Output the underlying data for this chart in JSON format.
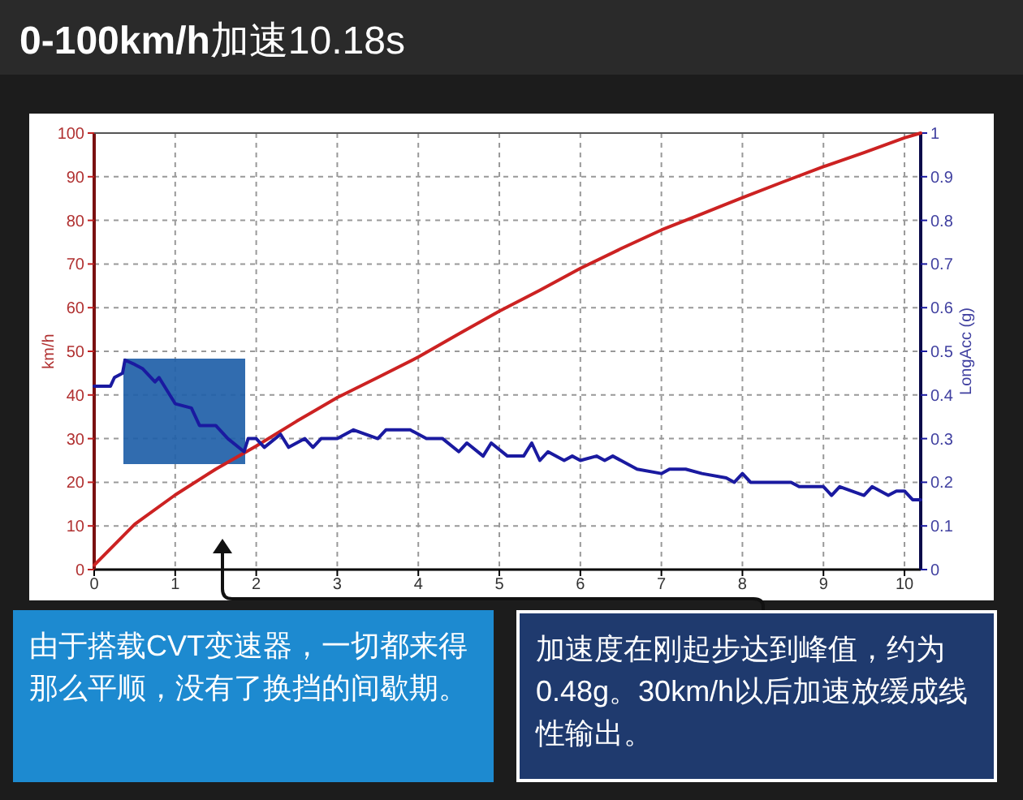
{
  "chart_data": {
    "type": "line",
    "title": "0-100km/h加速10.18s",
    "ylabel": "km/h",
    "y2label": "LongAcc (g)",
    "annotations": [
      "由于搭载CVT变速器，一切都来得那么平顺，没有了换挡的间歇期。",
      "加速度在刚起步达到峰值，约为0.48g。30km/h以后加速放缓成线性输出。"
    ],
    "xlim": [
      0,
      10.2
    ],
    "xticks": [
      0,
      1,
      2,
      3,
      4,
      5,
      6,
      7,
      8,
      9,
      10
    ],
    "ylim": [
      0,
      100
    ],
    "yticks": [
      0,
      10,
      20,
      30,
      40,
      50,
      60,
      70,
      80,
      90,
      100
    ],
    "y2lim": [
      0,
      1
    ],
    "y2ticks": [
      0,
      0.1,
      0.2,
      0.3,
      0.4,
      0.5,
      0.6,
      0.7,
      0.8,
      0.9,
      1
    ],
    "grid": true,
    "line_style": "solid",
    "marker": "none",
    "series": [
      {
        "color": "#cc2222",
        "x": [
          0,
          0.5,
          1,
          1.5,
          2,
          2.5,
          3,
          3.5,
          4,
          4.5,
          5,
          5.5,
          6,
          6.5,
          7,
          7.5,
          8,
          8.5,
          9,
          9.5,
          10,
          10.2
        ],
        "values": [
          1,
          10.4,
          17.1,
          23,
          28.3,
          34,
          39.4,
          44,
          48.7,
          54,
          59.2,
          64,
          69,
          73.5,
          77.8,
          81.5,
          85.2,
          88.8,
          92.3,
          95.5,
          98.9,
          100
        ]
      },
      {
        "color": "#1a1aa0",
        "axis": "y2",
        "x": [
          0,
          0.2,
          0.25,
          0.35,
          0.38,
          0.5,
          0.6,
          0.75,
          0.8,
          1,
          1.2,
          1.3,
          1.5,
          1.65,
          1.85,
          1.9,
          2,
          2.1,
          2.3,
          2.4,
          2.6,
          2.7,
          2.8,
          3,
          3.2,
          3.5,
          3.6,
          3.9,
          4.1,
          4.3,
          4.5,
          4.6,
          4.8,
          4.9,
          5.1,
          5.3,
          5.4,
          5.5,
          5.6,
          5.8,
          5.9,
          6,
          6.2,
          6.3,
          6.4,
          6.7,
          7,
          7.1,
          7.3,
          7.5,
          7.8,
          7.9,
          8,
          8.1,
          8.3,
          8.6,
          8.7,
          9,
          9.1,
          9.2,
          9.5,
          9.6,
          9.8,
          9.9,
          10,
          10.1,
          10.2
        ],
        "values": [
          0.42,
          0.42,
          0.44,
          0.45,
          0.48,
          0.47,
          0.46,
          0.43,
          0.44,
          0.38,
          0.37,
          0.33,
          0.33,
          0.3,
          0.27,
          0.3,
          0.3,
          0.28,
          0.31,
          0.28,
          0.3,
          0.28,
          0.3,
          0.3,
          0.32,
          0.3,
          0.32,
          0.32,
          0.3,
          0.3,
          0.27,
          0.29,
          0.26,
          0.29,
          0.26,
          0.26,
          0.29,
          0.25,
          0.27,
          0.25,
          0.26,
          0.25,
          0.26,
          0.25,
          0.26,
          0.23,
          0.22,
          0.23,
          0.23,
          0.22,
          0.21,
          0.2,
          0.22,
          0.2,
          0.2,
          0.2,
          0.19,
          0.19,
          0.17,
          0.19,
          0.17,
          0.19,
          0.17,
          0.18,
          0.18,
          0.16,
          0.16
        ]
      }
    ]
  }
}
